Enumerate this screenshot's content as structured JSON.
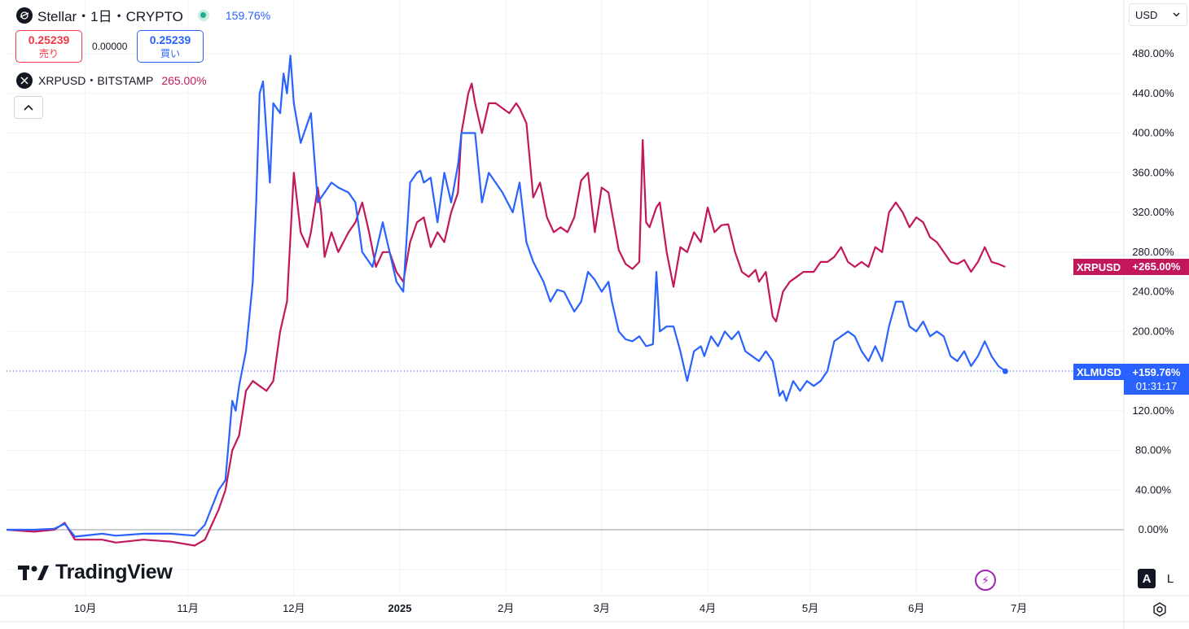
{
  "header": {
    "symbol_icon": "stellar-logo-icon",
    "title": "Stellar・1日・CRYPTO",
    "change": "159.76%",
    "sell_price": "0.25239",
    "sell_label": "売り",
    "spread": "0.00000",
    "buy_price": "0.25239",
    "buy_label": "買い"
  },
  "compare": {
    "icon": "xrp-logo-icon",
    "label": "XRPUSD・BITSTAMP",
    "change": "265.00%"
  },
  "currency": "USD",
  "logo_text": "TradingView",
  "scale_buttons": {
    "auto": "A",
    "log": "L"
  },
  "colors": {
    "xlm": "#2962ff",
    "xrp": "#c2185b",
    "grid": "#f0f3fa",
    "axis_text": "#131722"
  },
  "price_tags": {
    "xrp_symbol": "XRPUSD",
    "xrp_value": "+265.00%",
    "xlm_symbol": "XLMUSD",
    "xlm_value": "+159.76%",
    "xlm_countdown": "01:31:17"
  },
  "chart_data": {
    "type": "line",
    "y_unit": "%",
    "ylim": [
      -40,
      500
    ],
    "y_ticks": [
      "0.00%",
      "40.00%",
      "80.00%",
      "120.00%",
      "200.00%",
      "240.00%",
      "280.00%",
      "320.00%",
      "360.00%",
      "400.00%",
      "440.00%",
      "480.00%"
    ],
    "y_tick_values": [
      0,
      40,
      80,
      120,
      200,
      240,
      280,
      320,
      360,
      400,
      440,
      480
    ],
    "x_ticks": [
      "10月",
      "11月",
      "12月",
      "2025",
      "2月",
      "3月",
      "4月",
      "5月",
      "6月",
      "7月"
    ],
    "x_tick_days": [
      23,
      53,
      84,
      115,
      146,
      174,
      205,
      235,
      266,
      296
    ],
    "x_range_days": [
      0,
      330
    ],
    "grid": true,
    "series": [
      {
        "name": "XLMUSD",
        "color": "#2962ff",
        "last": 159.76,
        "points": [
          [
            0,
            0
          ],
          [
            8,
            0
          ],
          [
            14,
            1
          ],
          [
            17,
            6
          ],
          [
            20,
            -7
          ],
          [
            28,
            -4
          ],
          [
            32,
            -6
          ],
          [
            40,
            -4
          ],
          [
            48,
            -4
          ],
          [
            55,
            -6
          ],
          [
            58,
            5
          ],
          [
            62,
            40
          ],
          [
            64,
            50
          ],
          [
            66,
            130
          ],
          [
            67,
            120
          ],
          [
            68,
            145
          ],
          [
            70,
            180
          ],
          [
            72,
            250
          ],
          [
            73,
            330
          ],
          [
            74,
            440
          ],
          [
            75,
            452
          ],
          [
            76,
            400
          ],
          [
            77,
            350
          ],
          [
            78,
            430
          ],
          [
            80,
            420
          ],
          [
            81,
            460
          ],
          [
            82,
            440
          ],
          [
            83,
            478
          ],
          [
            84,
            430
          ],
          [
            86,
            390
          ],
          [
            87,
            400
          ],
          [
            89,
            420
          ],
          [
            91,
            330
          ],
          [
            93,
            340
          ],
          [
            95,
            350
          ],
          [
            97,
            345
          ],
          [
            100,
            340
          ],
          [
            102,
            330
          ],
          [
            104,
            280
          ],
          [
            107,
            265
          ],
          [
            110,
            310
          ],
          [
            112,
            280
          ],
          [
            114,
            250
          ],
          [
            116,
            240
          ],
          [
            118,
            350
          ],
          [
            120,
            360
          ],
          [
            121,
            362
          ],
          [
            122,
            350
          ],
          [
            124,
            355
          ],
          [
            126,
            310
          ],
          [
            128,
            360
          ],
          [
            130,
            330
          ],
          [
            132,
            368
          ],
          [
            133,
            400
          ],
          [
            135,
            400
          ],
          [
            137,
            400
          ],
          [
            139,
            330
          ],
          [
            141,
            360
          ],
          [
            143,
            350
          ],
          [
            145,
            340
          ],
          [
            148,
            320
          ],
          [
            150,
            350
          ],
          [
            152,
            290
          ],
          [
            154,
            270
          ],
          [
            157,
            250
          ],
          [
            159,
            230
          ],
          [
            161,
            242
          ],
          [
            163,
            240
          ],
          [
            166,
            220
          ],
          [
            168,
            230
          ],
          [
            170,
            260
          ],
          [
            172,
            252
          ],
          [
            174,
            240
          ],
          [
            176,
            250
          ],
          [
            177,
            230
          ],
          [
            179,
            200
          ],
          [
            181,
            192
          ],
          [
            183,
            190
          ],
          [
            185,
            195
          ],
          [
            187,
            185
          ],
          [
            189,
            187
          ],
          [
            190,
            260
          ],
          [
            191,
            200
          ],
          [
            193,
            205
          ],
          [
            195,
            205
          ],
          [
            197,
            180
          ],
          [
            199,
            150
          ],
          [
            201,
            180
          ],
          [
            203,
            185
          ],
          [
            204,
            175
          ],
          [
            206,
            195
          ],
          [
            208,
            185
          ],
          [
            210,
            200
          ],
          [
            212,
            192
          ],
          [
            214,
            200
          ],
          [
            216,
            180
          ],
          [
            218,
            175
          ],
          [
            220,
            170
          ],
          [
            222,
            180
          ],
          [
            224,
            170
          ],
          [
            226,
            135
          ],
          [
            227,
            140
          ],
          [
            228,
            130
          ],
          [
            230,
            150
          ],
          [
            232,
            140
          ],
          [
            234,
            150
          ],
          [
            236,
            145
          ],
          [
            238,
            150
          ],
          [
            240,
            160
          ],
          [
            242,
            190
          ],
          [
            244,
            195
          ],
          [
            246,
            200
          ],
          [
            248,
            195
          ],
          [
            250,
            180
          ],
          [
            252,
            170
          ],
          [
            254,
            185
          ],
          [
            256,
            170
          ],
          [
            258,
            205
          ],
          [
            260,
            230
          ],
          [
            262,
            230
          ],
          [
            264,
            205
          ],
          [
            266,
            200
          ],
          [
            268,
            210
          ],
          [
            270,
            195
          ],
          [
            272,
            200
          ],
          [
            274,
            195
          ],
          [
            276,
            175
          ],
          [
            278,
            170
          ],
          [
            280,
            180
          ],
          [
            282,
            165
          ],
          [
            284,
            175
          ],
          [
            286,
            190
          ],
          [
            288,
            175
          ],
          [
            290,
            165
          ],
          [
            292,
            160
          ]
        ]
      },
      {
        "name": "XRPUSD",
        "color": "#c2185b",
        "last": 265.0,
        "points": [
          [
            0,
            0
          ],
          [
            8,
            -2
          ],
          [
            14,
            0
          ],
          [
            17,
            7
          ],
          [
            20,
            -10
          ],
          [
            28,
            -10
          ],
          [
            32,
            -13
          ],
          [
            40,
            -10
          ],
          [
            48,
            -12
          ],
          [
            55,
            -16
          ],
          [
            58,
            -10
          ],
          [
            62,
            20
          ],
          [
            64,
            40
          ],
          [
            66,
            80
          ],
          [
            68,
            95
          ],
          [
            70,
            140
          ],
          [
            72,
            150
          ],
          [
            74,
            145
          ],
          [
            76,
            140
          ],
          [
            78,
            150
          ],
          [
            80,
            200
          ],
          [
            82,
            230
          ],
          [
            84,
            360
          ],
          [
            86,
            300
          ],
          [
            88,
            285
          ],
          [
            89,
            300
          ],
          [
            91,
            345
          ],
          [
            92,
            320
          ],
          [
            93,
            275
          ],
          [
            95,
            300
          ],
          [
            97,
            280
          ],
          [
            100,
            300
          ],
          [
            102,
            310
          ],
          [
            104,
            330
          ],
          [
            106,
            300
          ],
          [
            108,
            265
          ],
          [
            110,
            280
          ],
          [
            112,
            280
          ],
          [
            114,
            260
          ],
          [
            116,
            250
          ],
          [
            118,
            290
          ],
          [
            120,
            310
          ],
          [
            122,
            315
          ],
          [
            124,
            285
          ],
          [
            126,
            300
          ],
          [
            128,
            290
          ],
          [
            130,
            320
          ],
          [
            132,
            340
          ],
          [
            133,
            400
          ],
          [
            135,
            440
          ],
          [
            136,
            450
          ],
          [
            137,
            430
          ],
          [
            139,
            400
          ],
          [
            141,
            430
          ],
          [
            143,
            430
          ],
          [
            145,
            425
          ],
          [
            147,
            420
          ],
          [
            149,
            430
          ],
          [
            150,
            425
          ],
          [
            152,
            410
          ],
          [
            154,
            335
          ],
          [
            156,
            350
          ],
          [
            158,
            315
          ],
          [
            160,
            300
          ],
          [
            162,
            305
          ],
          [
            164,
            300
          ],
          [
            166,
            315
          ],
          [
            168,
            352
          ],
          [
            170,
            360
          ],
          [
            172,
            300
          ],
          [
            174,
            345
          ],
          [
            176,
            340
          ],
          [
            177,
            320
          ],
          [
            179,
            282
          ],
          [
            181,
            268
          ],
          [
            183,
            263
          ],
          [
            185,
            270
          ],
          [
            186,
            393
          ],
          [
            187,
            310
          ],
          [
            188,
            305
          ],
          [
            190,
            325
          ],
          [
            191,
            330
          ],
          [
            193,
            280
          ],
          [
            195,
            245
          ],
          [
            197,
            285
          ],
          [
            199,
            280
          ],
          [
            201,
            300
          ],
          [
            203,
            290
          ],
          [
            205,
            325
          ],
          [
            207,
            300
          ],
          [
            209,
            307
          ],
          [
            211,
            308
          ],
          [
            213,
            280
          ],
          [
            215,
            260
          ],
          [
            217,
            255
          ],
          [
            219,
            262
          ],
          [
            220,
            250
          ],
          [
            222,
            260
          ],
          [
            224,
            215
          ],
          [
            225,
            210
          ],
          [
            227,
            240
          ],
          [
            229,
            250
          ],
          [
            231,
            255
          ],
          [
            233,
            260
          ],
          [
            236,
            260
          ],
          [
            238,
            270
          ],
          [
            240,
            270
          ],
          [
            242,
            275
          ],
          [
            244,
            285
          ],
          [
            246,
            270
          ],
          [
            248,
            265
          ],
          [
            250,
            270
          ],
          [
            252,
            265
          ],
          [
            254,
            285
          ],
          [
            256,
            280
          ],
          [
            258,
            320
          ],
          [
            260,
            330
          ],
          [
            262,
            320
          ],
          [
            264,
            305
          ],
          [
            266,
            315
          ],
          [
            268,
            310
          ],
          [
            270,
            295
          ],
          [
            272,
            290
          ],
          [
            274,
            280
          ],
          [
            276,
            270
          ],
          [
            278,
            268
          ],
          [
            280,
            272
          ],
          [
            282,
            260
          ],
          [
            284,
            270
          ],
          [
            286,
            285
          ],
          [
            288,
            270
          ],
          [
            290,
            268
          ],
          [
            292,
            265
          ]
        ]
      }
    ]
  }
}
